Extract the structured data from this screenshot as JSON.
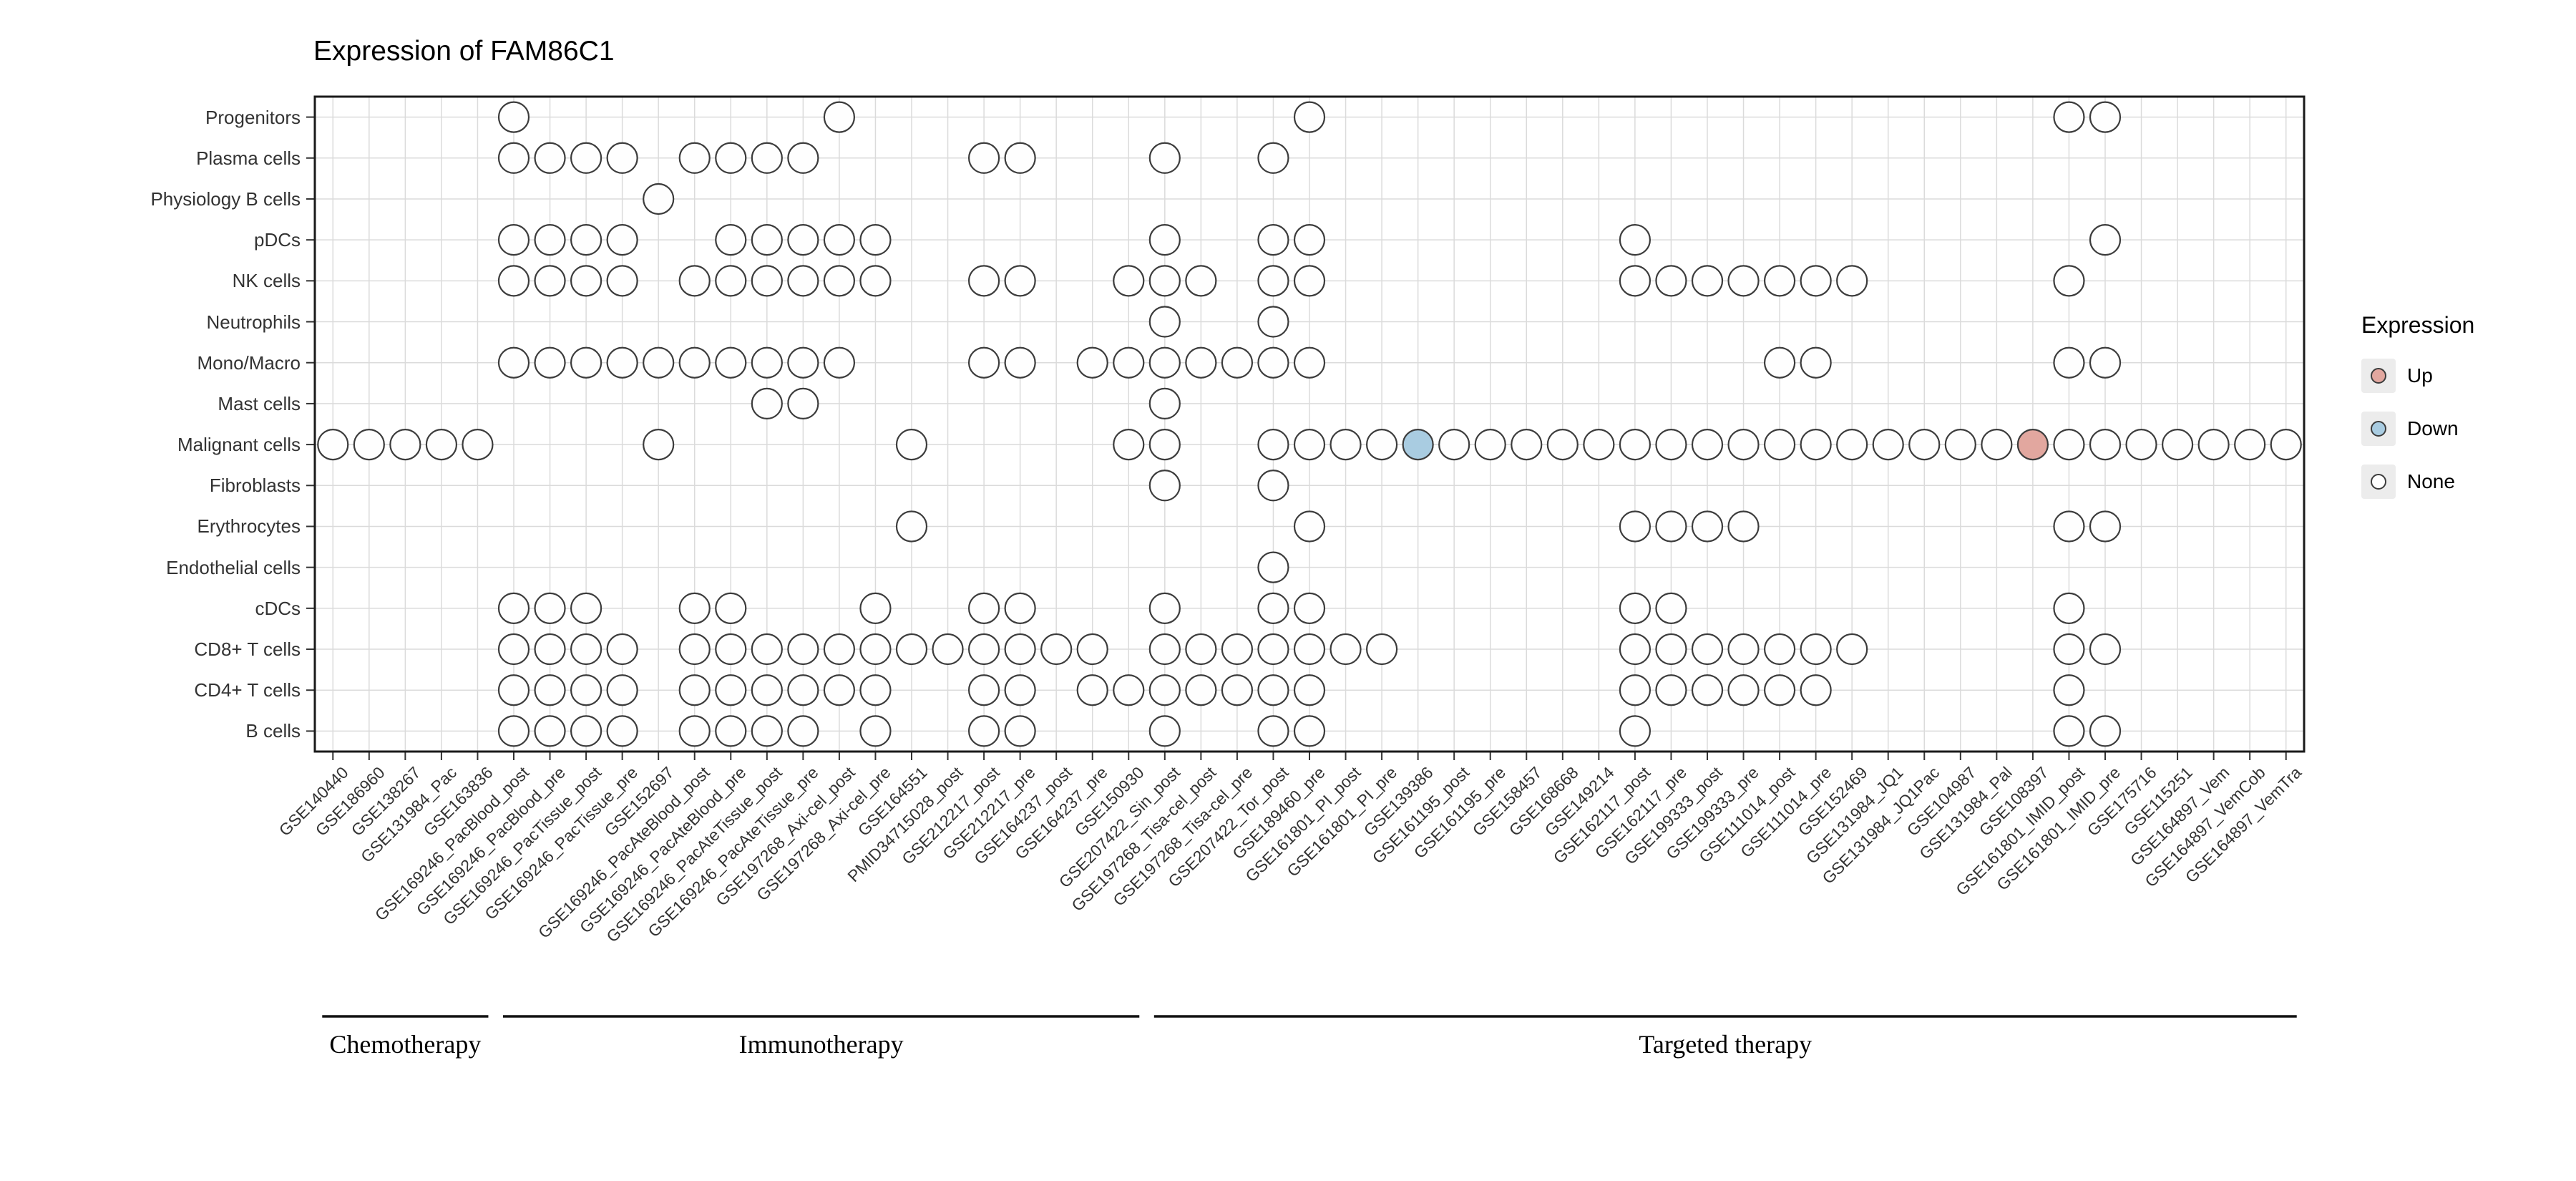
{
  "title": "Expression of FAM86C1",
  "legend": {
    "title": "Expression",
    "items": [
      {
        "label": "Up",
        "fill": "#E2A79F"
      },
      {
        "label": "Down",
        "fill": "#A9CCE1"
      },
      {
        "label": "None",
        "fill": "#FFFFFF"
      }
    ]
  },
  "chart_data": {
    "type": "scatter",
    "title": "Expression of FAM86C1",
    "grid": true,
    "legend_position": "right",
    "x_categories": [
      "GSE140440",
      "GSE186960",
      "GSE138267",
      "GSE131984_Pac",
      "GSE163836",
      "GSE169246_PacBlood_post",
      "GSE169246_PacBlood_pre",
      "GSE169246_PacTissue_post",
      "GSE169246_PacTissue_pre",
      "GSE152697",
      "GSE169246_PacAteBlood_post",
      "GSE169246_PacAteBlood_pre",
      "GSE169246_PacAteTissue_post",
      "GSE169246_PacAteTissue_pre",
      "GSE197268_Axi-cel_post",
      "GSE197268_Axi-cel_pre",
      "GSE164551",
      "PMID34715028_post",
      "GSE212217_post",
      "GSE212217_pre",
      "GSE164237_post",
      "GSE164237_pre",
      "GSE150930",
      "GSE207422_Sin_post",
      "GSE197268_Tisa-cel_post",
      "GSE197268_Tisa-cel_pre",
      "GSE207422_Tor_post",
      "GSE189460_pre",
      "GSE161801_PI_post",
      "GSE161801_PI_pre",
      "GSE139386",
      "GSE161195_post",
      "GSE161195_pre",
      "GSE158457",
      "GSE168668",
      "GSE149214",
      "GSE162117_post",
      "GSE162117_pre",
      "GSE199333_post",
      "GSE199333_pre",
      "GSE111014_post",
      "GSE111014_pre",
      "GSE152469",
      "GSE131984_JQ1",
      "GSE131984_JQ1Pac",
      "GSE104987",
      "GSE131984_Pal",
      "GSE108397",
      "GSE161801_IMID_post",
      "GSE161801_IMID_pre",
      "GSE175716",
      "GSE115251",
      "GSE164897_Vem",
      "GSE164897_VemCob",
      "GSE164897_VemTra"
    ],
    "y_categories": [
      "Progenitors",
      "Plasma cells",
      "Physiology B cells",
      "pDCs",
      "NK cells",
      "Neutrophils",
      "Mono/Macro",
      "Mast cells",
      "Malignant cells",
      "Fibroblasts",
      "Erythrocytes",
      "Endothelial cells",
      "cDCs",
      "CD8+ T cells",
      "CD4+ T cells",
      "B cells"
    ],
    "groups": [
      {
        "label": "Chemotherapy",
        "start": 1,
        "end": 5
      },
      {
        "label": "Immunotherapy",
        "start": 6,
        "end": 23
      },
      {
        "label": "Targeted therapy",
        "start": 24,
        "end": 55
      }
    ],
    "dots": {
      "Progenitors": [
        6,
        15,
        28,
        49,
        50
      ],
      "Plasma cells": [
        6,
        7,
        8,
        9,
        11,
        12,
        13,
        14,
        19,
        20,
        24,
        27
      ],
      "Physiology B cells": [
        10
      ],
      "pDCs": [
        6,
        7,
        8,
        9,
        12,
        13,
        14,
        15,
        16,
        24,
        27,
        28,
        37,
        50
      ],
      "NK cells": [
        6,
        7,
        8,
        9,
        11,
        12,
        13,
        14,
        15,
        16,
        19,
        20,
        23,
        24,
        25,
        27,
        28,
        37,
        38,
        39,
        40,
        41,
        42,
        43,
        49
      ],
      "Neutrophils": [
        24,
        27
      ],
      "Mono/Macro": [
        6,
        7,
        8,
        9,
        10,
        11,
        12,
        13,
        14,
        15,
        19,
        20,
        22,
        23,
        24,
        25,
        26,
        27,
        28,
        41,
        42,
        49,
        50
      ],
      "Mast cells": [
        13,
        14,
        24
      ],
      "Malignant cells": [
        1,
        2,
        3,
        4,
        5,
        10,
        17,
        23,
        24,
        27,
        28,
        29,
        30,
        31,
        32,
        33,
        34,
        35,
        36,
        37,
        38,
        39,
        40,
        41,
        42,
        43,
        44,
        45,
        46,
        47,
        48,
        49,
        50,
        51,
        52,
        53,
        54,
        55
      ],
      "Fibroblasts": [
        24,
        27
      ],
      "Erythrocytes": [
        17,
        28,
        37,
        38,
        39,
        40,
        49,
        50
      ],
      "Endothelial cells": [
        27
      ],
      "cDCs": [
        6,
        7,
        8,
        11,
        12,
        16,
        19,
        20,
        24,
        27,
        28,
        37,
        38,
        49
      ],
      "CD8+ T cells": [
        6,
        7,
        8,
        9,
        11,
        12,
        13,
        14,
        15,
        16,
        17,
        18,
        19,
        20,
        21,
        22,
        24,
        25,
        26,
        27,
        28,
        29,
        30,
        37,
        38,
        39,
        40,
        41,
        42,
        43,
        49,
        50
      ],
      "CD4+ T cells": [
        6,
        7,
        8,
        9,
        11,
        12,
        13,
        14,
        15,
        16,
        19,
        20,
        22,
        23,
        24,
        25,
        26,
        27,
        28,
        37,
        38,
        39,
        40,
        41,
        42,
        49
      ],
      "B cells": [
        6,
        7,
        8,
        9,
        11,
        12,
        13,
        14,
        16,
        19,
        20,
        24,
        27,
        28,
        37,
        49,
        50
      ]
    },
    "up": [
      {
        "row": "Malignant cells",
        "col": 48
      }
    ],
    "down": [
      {
        "row": "Malignant cells",
        "col": 31
      }
    ],
    "style": {
      "up_fill": "#E2A79F",
      "down_fill": "#A9CCE1",
      "none_fill": "#FEFEFE",
      "dot_stroke": "#3C3C3C",
      "grid_color": "#DBDBDB",
      "border_color": "#1A1A1A",
      "axis_text_color": "#333333",
      "legend_key_bg": "#ECECEC"
    }
  }
}
